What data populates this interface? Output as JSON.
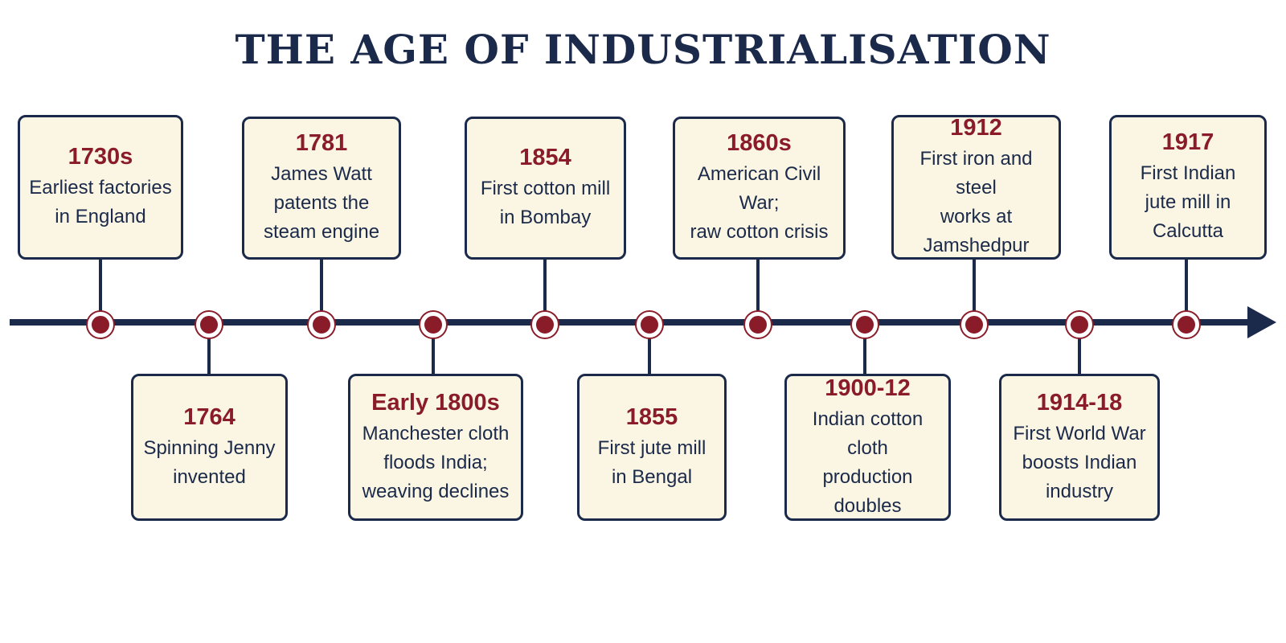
{
  "title": "THE AGE OF INDUSTRIALISATION",
  "events": [
    {
      "year": "1730s",
      "description": "Earliest factories\nin England",
      "position": "top"
    },
    {
      "year": "1764",
      "description": "Spinning Jenny\ninvented",
      "position": "bottom"
    },
    {
      "year": "1781",
      "description": "James Watt\npatents the\nsteam engine",
      "position": "top"
    },
    {
      "year": "Early 1800s",
      "description": "Manchester cloth\nfloods India;\nweaving declines",
      "position": "bottom"
    },
    {
      "year": "1854",
      "description": "First cotton mill\nin Bombay",
      "position": "top"
    },
    {
      "year": "1855",
      "description": "First jute mill\nin Bengal",
      "position": "bottom"
    },
    {
      "year": "1860s",
      "description": "American Civil War;\nraw cotton crisis",
      "position": "top"
    },
    {
      "year": "1900-12",
      "description": "Indian cotton cloth\nproduction doubles",
      "position": "bottom"
    },
    {
      "year": "1912",
      "description": "First iron and steel\nworks at\nJamshedpur",
      "position": "top"
    },
    {
      "year": "1914-18",
      "description": "First World War\nboosts Indian\nindustry",
      "position": "bottom"
    },
    {
      "year": "1917",
      "description": "First Indian\njute mill in\nCalcutta",
      "position": "top"
    }
  ],
  "colors": {
    "axis": "#1b2a4a",
    "year_text": "#8a1c2a",
    "card_background": "#fbf6e3",
    "marker": "#8a1c2a"
  }
}
